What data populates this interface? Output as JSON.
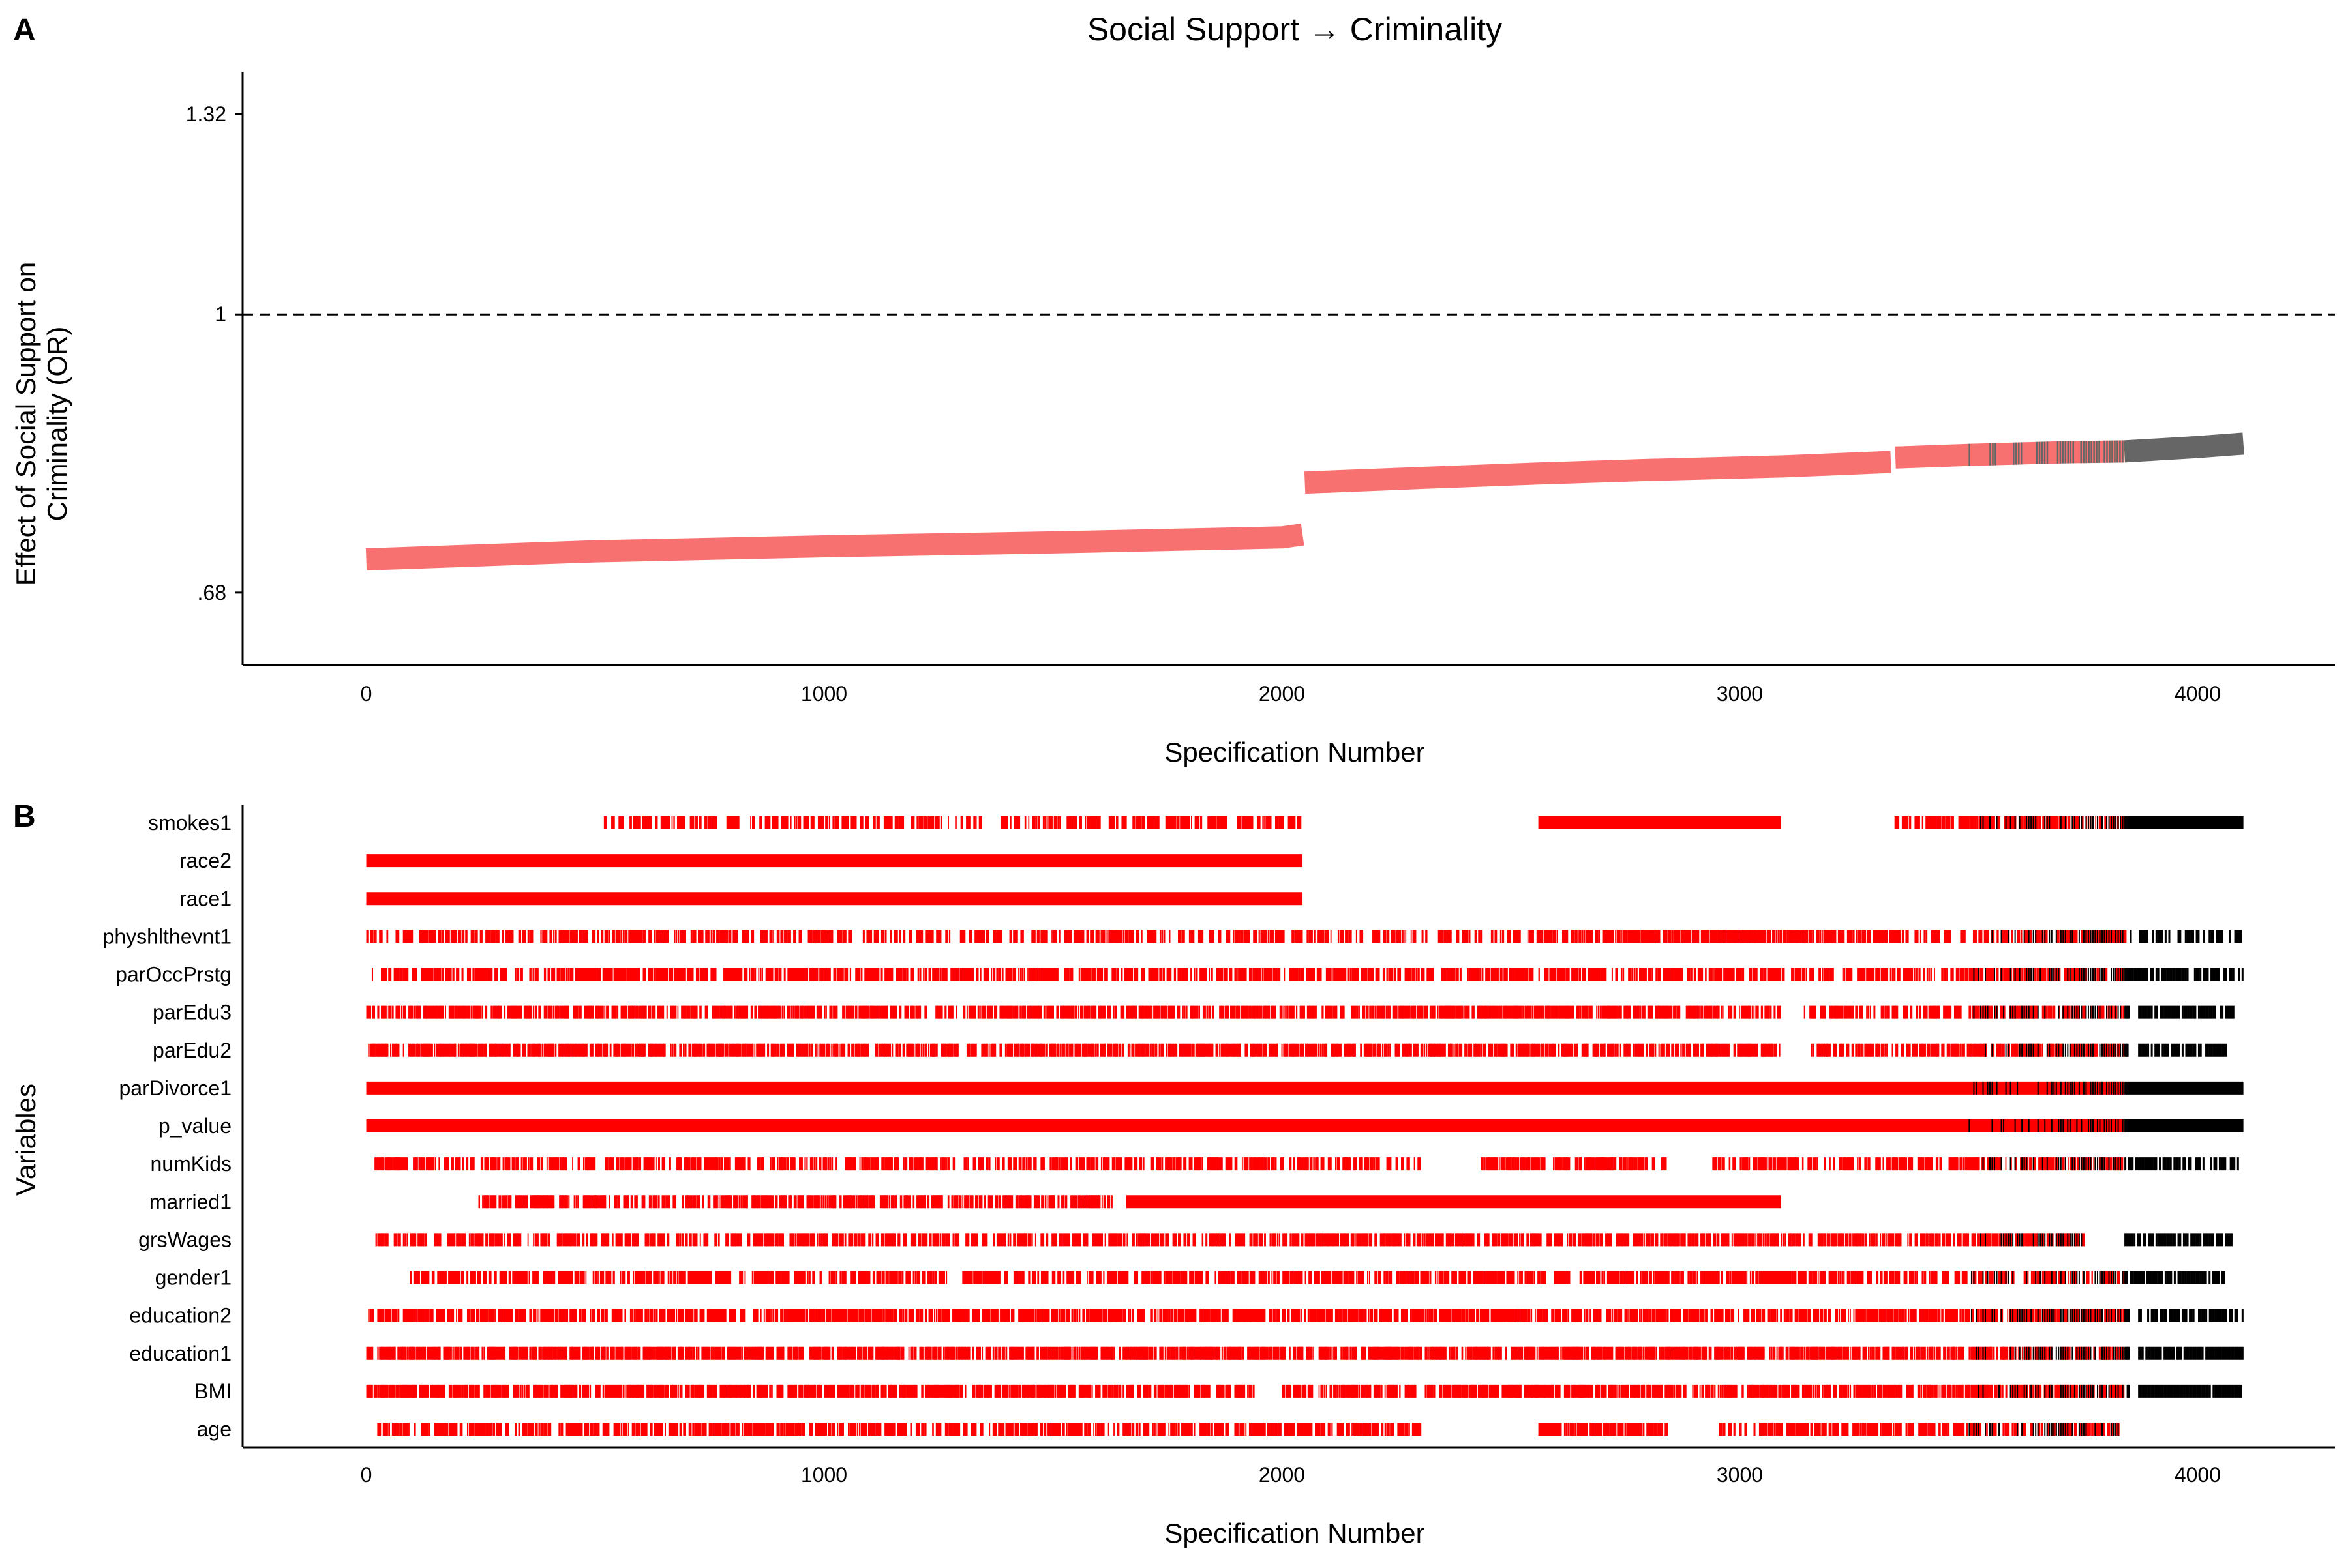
{
  "chart_data": [
    {
      "panel": "A",
      "type": "line",
      "title": "Social Support → Criminality",
      "xlabel": "Specification Number",
      "ylabel_line1": "Effect of Social Support on",
      "ylabel_line2": "Criminality (OR)",
      "y_scale": "log",
      "xlim": [
        -270,
        4300
      ],
      "ylim": [
        0.615,
        1.4
      ],
      "x_ticks": [
        0,
        1000,
        2000,
        3000,
        4000
      ],
      "x_tick_labels": [
        "0",
        "1000",
        "2000",
        "3000",
        "4000"
      ],
      "y_ticks": [
        0.68,
        1,
        1.32
      ],
      "y_tick_labels": [
        ".68",
        "1",
        "1.32"
      ],
      "reference_line": {
        "y": 1,
        "style": "dashed"
      },
      "series": [
        {
          "color": "#F87171",
          "x": [
            0,
            500,
            1000,
            1500,
            2000,
            2045
          ],
          "y": [
            0.712,
            0.72,
            0.725,
            0.729,
            0.734,
            0.737
          ]
        },
        {
          "color": "#F87171",
          "x": [
            2050,
            2300,
            2560,
            2800,
            3100,
            3330
          ],
          "y": [
            0.792,
            0.797,
            0.802,
            0.806,
            0.81,
            0.815
          ]
        },
        {
          "color": "#F87171",
          "x": [
            3340,
            3500,
            3700,
            3840
          ],
          "y": [
            0.82,
            0.823,
            0.826,
            0.827
          ]
        },
        {
          "color": "#666666",
          "x": [
            3840,
            4000,
            4100
          ],
          "y": [
            0.827,
            0.832,
            0.836
          ]
        }
      ],
      "mixed_region": {
        "x": [
          3500,
          3840
        ],
        "color": "#666666"
      }
    },
    {
      "panel": "B",
      "type": "heatmap",
      "xlabel": "Specification Number",
      "ylabel": "Variables",
      "xlim": [
        -270,
        4300
      ],
      "x_ticks": [
        0,
        1000,
        2000,
        3000,
        4000
      ],
      "x_tick_labels": [
        "0",
        "1000",
        "2000",
        "3000",
        "4000"
      ],
      "significant_color": "#FF0000",
      "nonsignificant_color": "#000000",
      "nonsignificant_from": 3840,
      "transition_from": 3500,
      "rows": [
        {
          "name": "smokes1",
          "segments": [
            [
              515,
              2045,
              0.55
            ],
            [
              2560,
              3090,
              0.95
            ],
            [
              3330,
              3840,
              0.7
            ],
            [
              3840,
              4100,
              1
            ]
          ]
        },
        {
          "name": "race2",
          "segments": [
            [
              0,
              2045,
              1
            ]
          ]
        },
        {
          "name": "race1",
          "segments": [
            [
              0,
              2045,
              1
            ]
          ]
        },
        {
          "name": "physhlthevnt1",
          "segments": [
            [
              0,
              2045,
              0.6
            ],
            [
              2050,
              2560,
              0.55
            ],
            [
              2560,
              3330,
              0.8
            ],
            [
              3330,
              4100,
              0.6
            ]
          ]
        },
        {
          "name": "parOccPrstg",
          "segments": [
            [
              0,
              4100,
              0.7
            ]
          ]
        },
        {
          "name": "parEdu3",
          "segments": [
            [
              0,
              3090,
              0.75
            ],
            [
              3140,
              3850,
              0.7
            ],
            [
              3870,
              4080,
              0.8
            ]
          ]
        },
        {
          "name": "parEdu2",
          "segments": [
            [
              0,
              3090,
              0.75
            ],
            [
              3140,
              3850,
              0.7
            ],
            [
              3870,
              4080,
              0.8
            ]
          ]
        },
        {
          "name": "parDivorce1",
          "segments": [
            [
              0,
              4100,
              1
            ]
          ]
        },
        {
          "name": "p_value",
          "segments": [
            [
              0,
              4100,
              1
            ]
          ]
        },
        {
          "name": "numKids",
          "segments": [
            [
              10,
              2300,
              0.6
            ],
            [
              2430,
              2560,
              0.9
            ],
            [
              2560,
              2840,
              0.65
            ],
            [
              2940,
              4090,
              0.65
            ]
          ]
        },
        {
          "name": "married1",
          "segments": [
            [
              245,
              1630,
              0.7
            ],
            [
              1660,
              3090,
              0.95
            ]
          ]
        },
        {
          "name": "grsWages",
          "segments": [
            [
              20,
              2045,
              0.65
            ],
            [
              2050,
              3330,
              0.75
            ],
            [
              3330,
              3750,
              0.7
            ],
            [
              3840,
              4080,
              0.75
            ]
          ]
        },
        {
          "name": "gender1",
          "segments": [
            [
              95,
              2045,
              0.65
            ],
            [
              2050,
              3330,
              0.75
            ],
            [
              3330,
              3600,
              0.6
            ],
            [
              3600,
              3840,
              0.6
            ],
            [
              3840,
              4060,
              0.8
            ]
          ]
        },
        {
          "name": "education2",
          "segments": [
            [
              0,
              3850,
              0.8
            ],
            [
              3870,
              4100,
              0.85
            ]
          ]
        },
        {
          "name": "education1",
          "segments": [
            [
              0,
              3850,
              0.8
            ],
            [
              3870,
              4100,
              0.85
            ]
          ]
        },
        {
          "name": "BMI",
          "segments": [
            [
              0,
              1940,
              0.8
            ],
            [
              2000,
              3850,
              0.8
            ],
            [
              3870,
              4100,
              0.9
            ]
          ]
        },
        {
          "name": "age",
          "segments": [
            [
              20,
              2300,
              0.7
            ],
            [
              2560,
              2840,
              0.9
            ],
            [
              2950,
              3830,
              0.6
            ]
          ]
        }
      ]
    }
  ],
  "panel_labels": {
    "a": "A",
    "b": "B"
  }
}
